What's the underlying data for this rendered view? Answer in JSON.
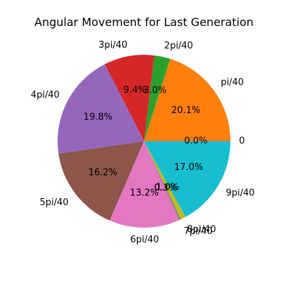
{
  "chart_data": {
    "type": "pie",
    "title": "Angular Movement for Last Generation",
    "start_angle_deg": 0,
    "direction": "counterclockwise",
    "slices": [
      {
        "label": "0",
        "value": 0.0,
        "pct_label": "0.0%",
        "color": "#1f77b4"
      },
      {
        "label": "pi/40",
        "value": 20.1,
        "pct_label": "20.1%",
        "color": "#ff7f0e"
      },
      {
        "label": "2pi/40",
        "value": 3.0,
        "pct_label": "3.0%",
        "color": "#2ca02c"
      },
      {
        "label": "3pi/40",
        "value": 9.4,
        "pct_label": "9.4%",
        "color": "#d62728"
      },
      {
        "label": "4pi/40",
        "value": 19.8,
        "pct_label": "19.8%",
        "color": "#9467bd"
      },
      {
        "label": "5pi/40",
        "value": 16.2,
        "pct_label": "16.2%",
        "color": "#8c564b"
      },
      {
        "label": "6pi/40",
        "value": 13.2,
        "pct_label": "13.2%",
        "color": "#e377c2"
      },
      {
        "label": "7pi/40",
        "value": 0.3,
        "pct_label": "0.3%",
        "color": "#7f7f7f"
      },
      {
        "label": "8pi/40",
        "value": 1.0,
        "pct_label": "1.0%",
        "color": "#bcbd22"
      },
      {
        "label": "9pi/40",
        "value": 17.0,
        "pct_label": "17.0%",
        "color": "#17becf"
      }
    ]
  }
}
